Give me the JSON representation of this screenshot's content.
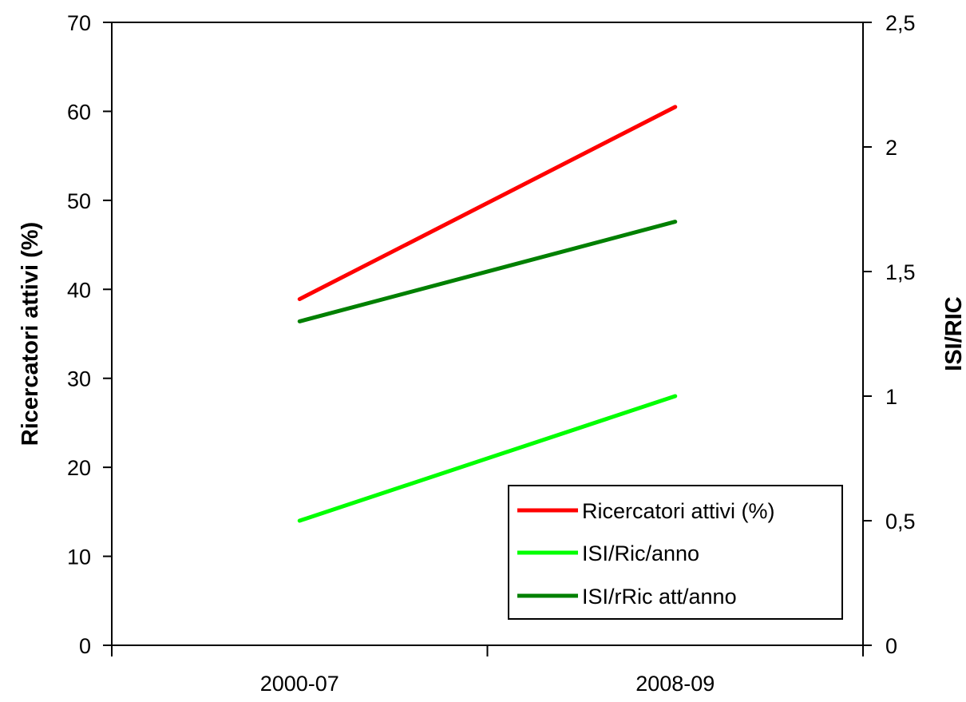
{
  "chart_data": {
    "type": "line",
    "categories": [
      "2000-07",
      "2008-09"
    ],
    "x_tick_labels": [
      "2000-07",
      "2008-09"
    ],
    "y_left": {
      "label": "Ricercatori attivi (%)",
      "ylim": [
        0,
        70
      ],
      "ticks": [
        0,
        10,
        20,
        30,
        40,
        50,
        60,
        70
      ],
      "tick_labels": [
        "0",
        "10",
        "20",
        "30",
        "40",
        "50",
        "60",
        "70"
      ]
    },
    "y_right": {
      "label": "ISI/RIC",
      "ylim": [
        0,
        2.5
      ],
      "ticks": [
        0,
        0.5,
        1,
        1.5,
        2,
        2.5
      ],
      "tick_labels": [
        "0",
        "0,5",
        "1",
        "1,5",
        "2",
        "2,5"
      ]
    },
    "series": [
      {
        "name": "Ricercatori attivi (%)",
        "axis": "left",
        "color": "#ff0000",
        "values": [
          38.9,
          60.5
        ]
      },
      {
        "name": "ISI/Ric/anno",
        "axis": "right",
        "color": "#00ff00",
        "values": [
          0.5,
          1.0
        ]
      },
      {
        "name": "ISI/rRic att/anno",
        "axis": "right",
        "color": "#008000",
        "values": [
          1.3,
          1.7
        ]
      }
    ],
    "grid": false,
    "legend_position": "bottom-right"
  }
}
